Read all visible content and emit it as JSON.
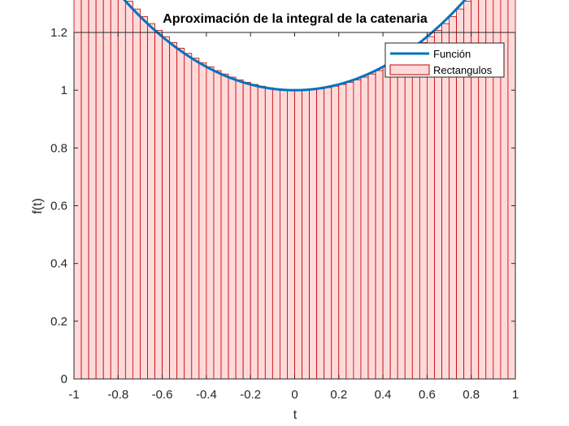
{
  "chart_data": {
    "type": "bar",
    "title": "Aproximación de la integral de la catenaria",
    "xlabel": "t",
    "ylabel": "f(t)",
    "xlim": [
      -1,
      1
    ],
    "ylim": [
      0,
      1.2
    ],
    "xticks": [
      "-1",
      "-0.8",
      "-0.6",
      "-0.4",
      "-0.2",
      "0",
      "0.2",
      "0.4",
      "0.6",
      "0.8",
      "1"
    ],
    "yticks": [
      "0",
      "0.2",
      "0.4",
      "0.6",
      "0.8",
      "1",
      "1.2"
    ],
    "grid": false,
    "legend_position": "top-right",
    "function": {
      "name": "Función",
      "expression": "cosh(t)",
      "color": "#0072BD"
    },
    "rectangles": {
      "name": "Rectangulos",
      "count": 60,
      "x_start": -1,
      "x_end": 1,
      "height_rule": "left-endpoint",
      "fill_color": "#FFDADA",
      "edge_color": "#C00000"
    }
  }
}
